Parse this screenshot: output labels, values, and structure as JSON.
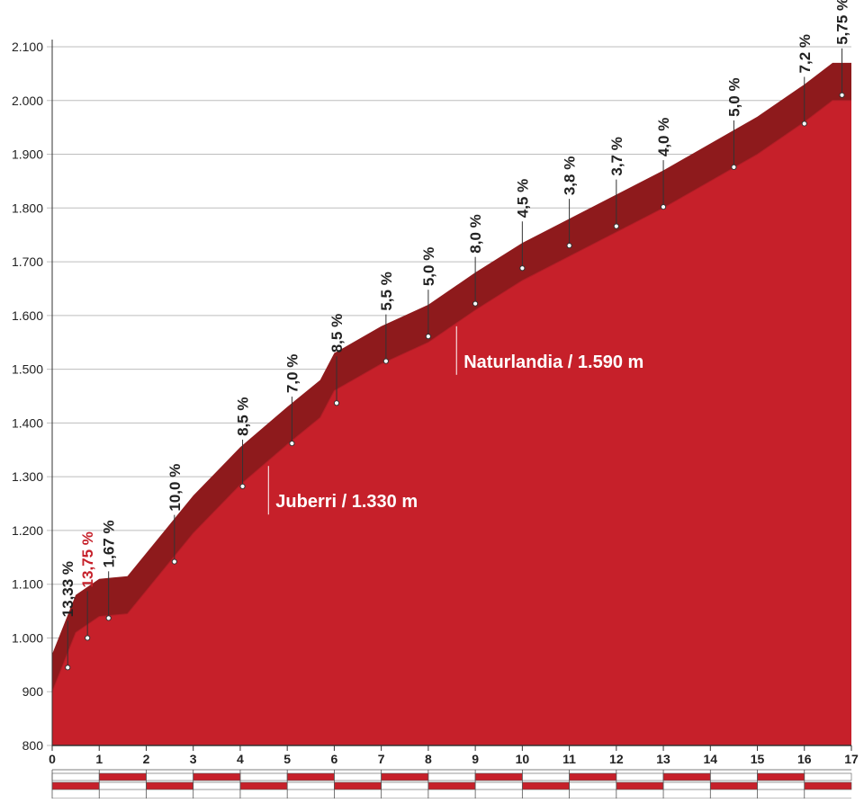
{
  "chart_data": {
    "type": "area",
    "title": "",
    "xlabel": "",
    "ylabel": "",
    "xlim": [
      0,
      17
    ],
    "ylim": [
      800,
      2100
    ],
    "grid": true,
    "colors": {
      "fill": "#c6202a",
      "top_band": "#8e1a1c",
      "axis": "#333333",
      "highlight_label": "#c6202a"
    },
    "x_ticks": [
      "0",
      "1",
      "2",
      "3",
      "4",
      "5",
      "6",
      "7",
      "8",
      "9",
      "10",
      "11",
      "12",
      "13",
      "14",
      "15",
      "16",
      "17"
    ],
    "y_ticks": [
      "800",
      "900",
      "1.000",
      "1.100",
      "1.200",
      "1.300",
      "1.400",
      "1.500",
      "1.600",
      "1.700",
      "1.800",
      "1.900",
      "2.000",
      "2.100"
    ],
    "profile": {
      "x": [
        0,
        0.5,
        1,
        1.6,
        3,
        4,
        5,
        5.7,
        6,
        7,
        8,
        9,
        10,
        11,
        12,
        13,
        14,
        15,
        16,
        16.6,
        17
      ],
      "y": [
        900,
        1010,
        1040,
        1045,
        1195,
        1285,
        1360,
        1410,
        1460,
        1510,
        1550,
        1610,
        1665,
        1710,
        1755,
        1800,
        1850,
        1900,
        1960,
        2000,
        2000
      ]
    },
    "gradients": [
      {
        "label": "13,33 %",
        "x": 0.33,
        "elev": 945,
        "highlight": false
      },
      {
        "label": "13,75 %",
        "x": 0.75,
        "elev": 1000,
        "highlight": true
      },
      {
        "label": "1,67 %",
        "x": 1.2,
        "elev": 1037,
        "highlight": false
      },
      {
        "label": "10,0 %",
        "x": 2.6,
        "elev": 1142,
        "highlight": false
      },
      {
        "label": "8,5 %",
        "x": 4.05,
        "elev": 1282,
        "highlight": false
      },
      {
        "label": "7,0 %",
        "x": 5.1,
        "elev": 1362,
        "highlight": false
      },
      {
        "label": "8,5 %",
        "x": 6.05,
        "elev": 1437,
        "highlight": false
      },
      {
        "label": "5,5 %",
        "x": 7.1,
        "elev": 1515,
        "highlight": false
      },
      {
        "label": "5,0 %",
        "x": 8.0,
        "elev": 1561,
        "highlight": false
      },
      {
        "label": "8,0 %",
        "x": 9.0,
        "elev": 1622,
        "highlight": false
      },
      {
        "label": "4,5 %",
        "x": 10.0,
        "elev": 1688,
        "highlight": false
      },
      {
        "label": "3,8 %",
        "x": 11.0,
        "elev": 1730,
        "highlight": false
      },
      {
        "label": "3,7 %",
        "x": 12.0,
        "elev": 1766,
        "highlight": false
      },
      {
        "label": "4,0 %",
        "x": 13.0,
        "elev": 1802,
        "highlight": false
      },
      {
        "label": "5,0 %",
        "x": 14.5,
        "elev": 1876,
        "highlight": false
      },
      {
        "label": "7,2 %",
        "x": 16.0,
        "elev": 1957,
        "highlight": false
      },
      {
        "label": "5,75 %",
        "x": 16.8,
        "elev": 2010,
        "highlight": false
      }
    ],
    "annotations": [
      {
        "label": "Juberri / 1.330 m",
        "x": 4.6,
        "elev": 1330
      },
      {
        "label": "Naturlandia / 1.590 m",
        "x": 8.6,
        "elev": 1590
      }
    ]
  }
}
